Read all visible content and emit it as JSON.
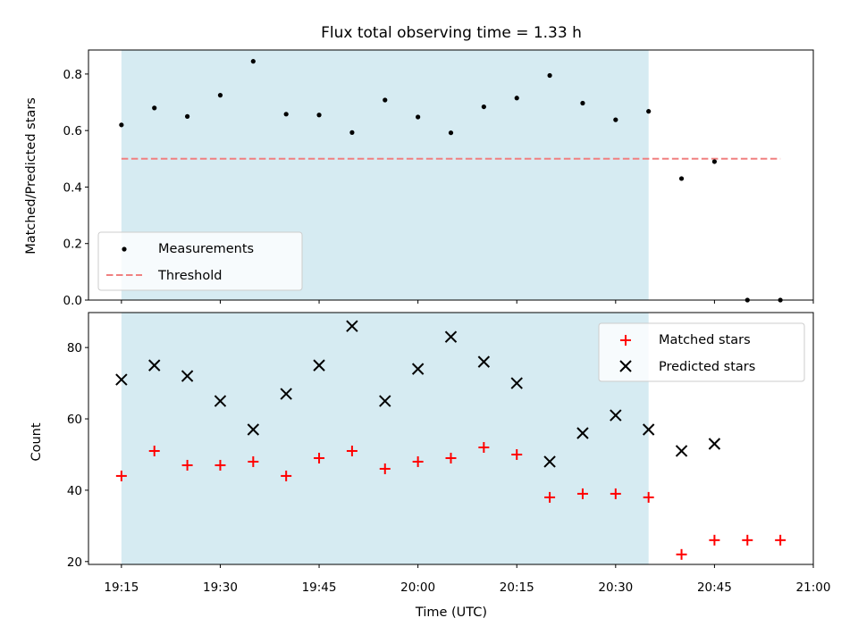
{
  "chart_data": [
    {
      "type": "scatter",
      "title": "Flux total observing time = 1.33 h",
      "xlabel": "",
      "ylabel": "Matched/Predicted stars",
      "ylim": [
        0,
        0.885
      ],
      "yticks": [
        "0.0",
        "0.2",
        "0.4",
        "0.6",
        "0.8"
      ],
      "ytick_values": [
        0,
        0.2,
        0.4,
        0.6,
        0.8
      ],
      "x_minutes": [
        0,
        5,
        10,
        15,
        20,
        25,
        30,
        35,
        40,
        45,
        50,
        55,
        60,
        65,
        70,
        75,
        80,
        85,
        90,
        95,
        100,
        105,
        110
      ],
      "measurements": [
        0.62,
        0.68,
        0.65,
        0.725,
        0.845,
        0.658,
        0.655,
        0.593,
        0.708,
        0.648,
        0.592,
        0.684,
        0.715,
        0.795,
        0.697,
        0.638,
        0.668,
        0.43,
        0.49,
        0.0,
        0.0
      ],
      "measurement_x_minutes": [
        0,
        5,
        10,
        15,
        20,
        25,
        30,
        35,
        40,
        45,
        50,
        55,
        60,
        65,
        70,
        75,
        80,
        85,
        90,
        95,
        100
      ],
      "threshold": {
        "value": 0.5,
        "x_range_minutes": [
          0,
          100
        ],
        "color": "#f08080"
      },
      "shaded_range_minutes": [
        0,
        80
      ],
      "legend": [
        {
          "label": "Measurements"
        },
        {
          "label": "Threshold"
        }
      ],
      "legend_position": "lower-left"
    },
    {
      "type": "scatter",
      "title": "",
      "xlabel": "Time (UTC)",
      "ylabel": "Count",
      "ylim": [
        19.2,
        89.8
      ],
      "yticks": [
        "20",
        "40",
        "60",
        "80"
      ],
      "ytick_values": [
        20,
        40,
        60,
        80
      ],
      "xlim_minutes": [
        -5,
        105
      ],
      "xticks": [
        "19:15",
        "19:30",
        "19:45",
        "20:00",
        "20:15",
        "20:30",
        "20:45",
        "21:00"
      ],
      "xtick_minutes": [
        0,
        15,
        30,
        45,
        60,
        75,
        90,
        105
      ],
      "series": [
        {
          "name": "Matched stars",
          "marker": "+",
          "color": "#ff0000",
          "x_minutes": [
            0,
            5,
            10,
            15,
            20,
            25,
            30,
            35,
            40,
            45,
            50,
            55,
            60,
            65,
            70,
            75,
            80,
            85,
            90,
            95,
            100
          ],
          "values": [
            44,
            51,
            47,
            47,
            48,
            44,
            49,
            51,
            46,
            48,
            49,
            52,
            50,
            38,
            39,
            39,
            38,
            22,
            26,
            26,
            26
          ]
        },
        {
          "name": "Predicted stars",
          "marker": "x",
          "color": "#000000",
          "x_minutes": [
            0,
            5,
            10,
            15,
            20,
            25,
            30,
            35,
            40,
            45,
            50,
            55,
            60,
            65,
            70,
            75,
            80,
            85,
            90
          ],
          "values": [
            71,
            75,
            72,
            65,
            57,
            67,
            75,
            86,
            65,
            74,
            83,
            76,
            70,
            48,
            56,
            61,
            57,
            51,
            53
          ]
        }
      ],
      "shaded_range_minutes": [
        0,
        80
      ],
      "shade_color": "#add8e6",
      "legend_position": "top-right"
    }
  ]
}
